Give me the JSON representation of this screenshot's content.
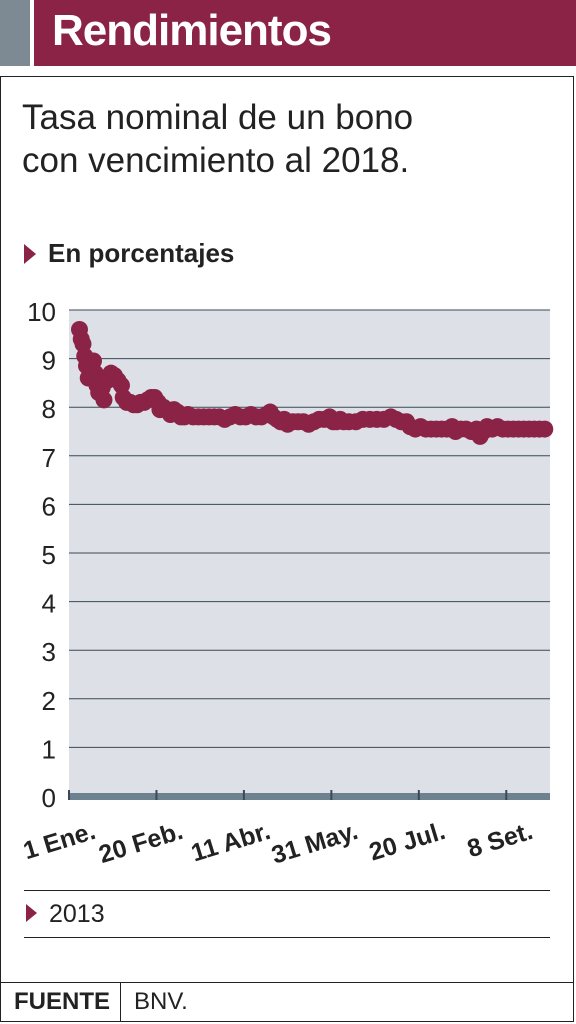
{
  "header": {
    "title": "Rendimientos",
    "accent_color": "#7d8a94",
    "bar_color": "#8b2346"
  },
  "subtitle_lines": [
    "Tasa nominal de un bono",
    "con vencimiento al 2018."
  ],
  "units_label": "En porcentajes",
  "legend": {
    "label": "2013",
    "marker_color": "#8b2346"
  },
  "source": {
    "label": "FUENTE",
    "value": "BNV."
  },
  "chart_data": {
    "type": "scatter",
    "title": "Tasa nominal de un bono con vencimiento al 2018.",
    "xlabel": "",
    "ylabel": "En porcentajes",
    "ylim": [
      0,
      10
    ],
    "yticks": [
      0,
      1,
      2,
      3,
      4,
      5,
      6,
      7,
      8,
      9,
      10
    ],
    "xlim": [
      "2013-01-01",
      "2013-10-03"
    ],
    "xticks": [
      {
        "date": "2013-01-01",
        "label": "1 Ene."
      },
      {
        "date": "2013-02-20",
        "label": "20 Feb."
      },
      {
        "date": "2013-04-11",
        "label": "11 Abr."
      },
      {
        "date": "2013-05-31",
        "label": "31 May."
      },
      {
        "date": "2013-07-20",
        "label": "20 Jul."
      },
      {
        "date": "2013-09-08",
        "label": "8 Set."
      }
    ],
    "grid": true,
    "colors": {
      "points": "#8b2346",
      "plot_bg": "#dde0e6",
      "grid": "#3a4a56",
      "baseline": "#6e8190"
    },
    "series": [
      {
        "name": "2013",
        "points": [
          [
            "2013-01-07",
            9.6
          ],
          [
            "2013-01-08",
            9.4
          ],
          [
            "2013-01-09",
            9.3
          ],
          [
            "2013-01-10",
            9.05
          ],
          [
            "2013-01-11",
            8.85
          ],
          [
            "2013-01-12",
            8.6
          ],
          [
            "2013-01-14",
            8.8
          ],
          [
            "2013-01-15",
            8.95
          ],
          [
            "2013-01-16",
            8.7
          ],
          [
            "2013-01-17",
            8.45
          ],
          [
            "2013-01-18",
            8.3
          ],
          [
            "2013-01-20",
            8.4
          ],
          [
            "2013-01-21",
            8.15
          ],
          [
            "2013-01-23",
            8.55
          ],
          [
            "2013-01-25",
            8.7
          ],
          [
            "2013-01-27",
            8.65
          ],
          [
            "2013-01-29",
            8.55
          ],
          [
            "2013-01-31",
            8.45
          ],
          [
            "2013-02-01",
            8.2
          ],
          [
            "2013-02-03",
            8.1
          ],
          [
            "2013-02-05",
            8.1
          ],
          [
            "2013-02-07",
            8.05
          ],
          [
            "2013-02-09",
            8.05
          ],
          [
            "2013-02-11",
            8.1
          ],
          [
            "2013-02-13",
            8.1
          ],
          [
            "2013-02-15",
            8.15
          ],
          [
            "2013-02-17",
            8.2
          ],
          [
            "2013-02-19",
            8.2
          ],
          [
            "2013-02-21",
            8.1
          ],
          [
            "2013-02-22",
            7.95
          ],
          [
            "2013-02-24",
            8.0
          ],
          [
            "2013-02-26",
            7.95
          ],
          [
            "2013-02-28",
            7.85
          ],
          [
            "2013-03-02",
            7.95
          ],
          [
            "2013-03-04",
            7.9
          ],
          [
            "2013-03-06",
            7.8
          ],
          [
            "2013-03-08",
            7.8
          ],
          [
            "2013-03-10",
            7.85
          ],
          [
            "2013-03-13",
            7.8
          ],
          [
            "2013-03-16",
            7.8
          ],
          [
            "2013-03-19",
            7.8
          ],
          [
            "2013-03-22",
            7.8
          ],
          [
            "2013-03-25",
            7.8
          ],
          [
            "2013-03-28",
            7.8
          ],
          [
            "2013-03-31",
            7.75
          ],
          [
            "2013-04-03",
            7.8
          ],
          [
            "2013-04-06",
            7.85
          ],
          [
            "2013-04-09",
            7.8
          ],
          [
            "2013-04-12",
            7.8
          ],
          [
            "2013-04-15",
            7.85
          ],
          [
            "2013-04-18",
            7.8
          ],
          [
            "2013-04-21",
            7.8
          ],
          [
            "2013-04-24",
            7.85
          ],
          [
            "2013-04-26",
            7.9
          ],
          [
            "2013-04-28",
            7.8
          ],
          [
            "2013-04-30",
            7.75
          ],
          [
            "2013-05-02",
            7.7
          ],
          [
            "2013-05-04",
            7.75
          ],
          [
            "2013-05-06",
            7.65
          ],
          [
            "2013-05-09",
            7.7
          ],
          [
            "2013-05-12",
            7.7
          ],
          [
            "2013-05-15",
            7.7
          ],
          [
            "2013-05-18",
            7.65
          ],
          [
            "2013-05-21",
            7.7
          ],
          [
            "2013-05-24",
            7.75
          ],
          [
            "2013-05-27",
            7.75
          ],
          [
            "2013-05-30",
            7.8
          ],
          [
            "2013-06-01",
            7.7
          ],
          [
            "2013-06-03",
            7.7
          ],
          [
            "2013-06-05",
            7.75
          ],
          [
            "2013-06-07",
            7.7
          ],
          [
            "2013-06-10",
            7.7
          ],
          [
            "2013-06-14",
            7.7
          ],
          [
            "2013-06-18",
            7.75
          ],
          [
            "2013-06-22",
            7.75
          ],
          [
            "2013-06-26",
            7.75
          ],
          [
            "2013-06-30",
            7.75
          ],
          [
            "2013-07-04",
            7.8
          ],
          [
            "2013-07-07",
            7.75
          ],
          [
            "2013-07-10",
            7.7
          ],
          [
            "2013-07-13",
            7.7
          ],
          [
            "2013-07-15",
            7.6
          ],
          [
            "2013-07-18",
            7.55
          ],
          [
            "2013-07-21",
            7.6
          ],
          [
            "2013-07-24",
            7.55
          ],
          [
            "2013-07-27",
            7.55
          ],
          [
            "2013-07-30",
            7.55
          ],
          [
            "2013-08-02",
            7.55
          ],
          [
            "2013-08-05",
            7.55
          ],
          [
            "2013-08-08",
            7.6
          ],
          [
            "2013-08-10",
            7.5
          ],
          [
            "2013-08-13",
            7.55
          ],
          [
            "2013-08-16",
            7.55
          ],
          [
            "2013-08-19",
            7.5
          ],
          [
            "2013-08-22",
            7.55
          ],
          [
            "2013-08-24",
            7.4
          ],
          [
            "2013-08-26",
            7.5
          ],
          [
            "2013-08-28",
            7.6
          ],
          [
            "2013-08-31",
            7.55
          ],
          [
            "2013-09-03",
            7.6
          ],
          [
            "2013-09-06",
            7.55
          ],
          [
            "2013-09-09",
            7.55
          ],
          [
            "2013-09-12",
            7.55
          ],
          [
            "2013-09-15",
            7.55
          ],
          [
            "2013-09-18",
            7.55
          ],
          [
            "2013-09-21",
            7.55
          ],
          [
            "2013-09-24",
            7.55
          ],
          [
            "2013-09-27",
            7.55
          ],
          [
            "2013-09-30",
            7.55
          ]
        ]
      }
    ]
  }
}
